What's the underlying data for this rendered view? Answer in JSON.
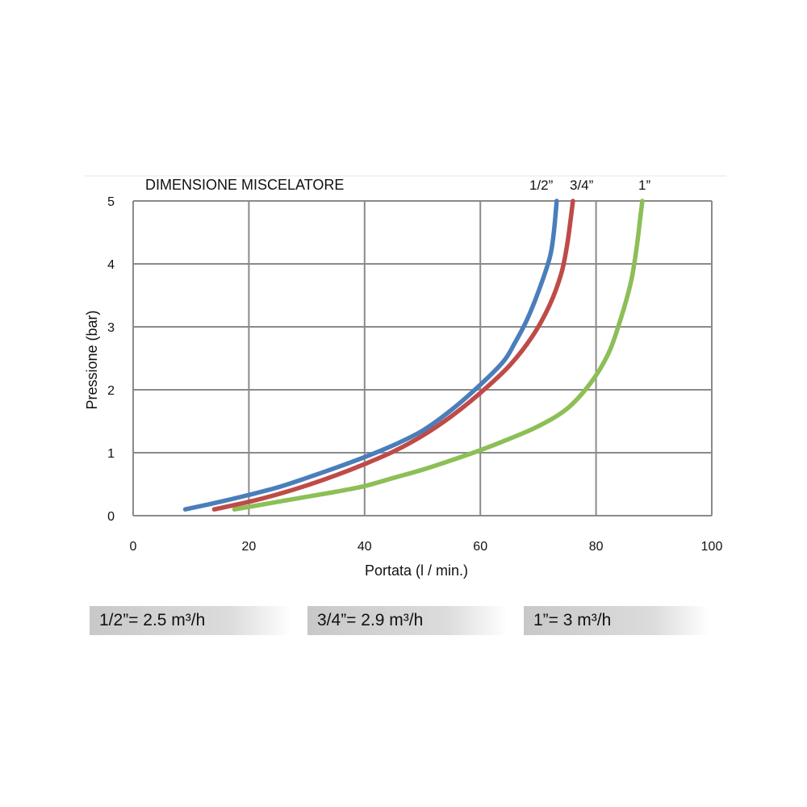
{
  "chart_data": {
    "type": "line",
    "title": "DIMENSIONE MISCELATORE",
    "xlabel": "Portata (l / min.)",
    "ylabel": "Pressione (bar)",
    "xlim": [
      0,
      100
    ],
    "ylim": [
      0,
      5
    ],
    "x_ticks": [
      "0",
      "20",
      "40",
      "60",
      "80",
      "100"
    ],
    "y_ticks": [
      "0",
      "1",
      "2",
      "3",
      "4",
      "5"
    ],
    "grid": true,
    "series": [
      {
        "name": "1/2”",
        "color": "#4a7ebb",
        "points": [
          [
            9,
            0.1
          ],
          [
            15,
            0.22
          ],
          [
            20,
            0.33
          ],
          [
            25,
            0.45
          ],
          [
            30,
            0.6
          ],
          [
            35,
            0.76
          ],
          [
            40,
            0.93
          ],
          [
            45,
            1.12
          ],
          [
            50,
            1.35
          ],
          [
            55,
            1.68
          ],
          [
            60,
            2.08
          ],
          [
            64,
            2.45
          ],
          [
            66,
            2.75
          ],
          [
            68,
            3.1
          ],
          [
            70,
            3.55
          ],
          [
            72,
            4.1
          ],
          [
            72.7,
            4.5
          ],
          [
            73.2,
            5.0
          ]
        ]
      },
      {
        "name": "3/4”",
        "color": "#be4b48",
        "points": [
          [
            14,
            0.1
          ],
          [
            20,
            0.22
          ],
          [
            25,
            0.34
          ],
          [
            30,
            0.48
          ],
          [
            35,
            0.64
          ],
          [
            40,
            0.82
          ],
          [
            45,
            1.02
          ],
          [
            50,
            1.27
          ],
          [
            55,
            1.58
          ],
          [
            60,
            1.95
          ],
          [
            65,
            2.38
          ],
          [
            69,
            2.85
          ],
          [
            72,
            3.35
          ],
          [
            74,
            3.85
          ],
          [
            75,
            4.3
          ],
          [
            75.6,
            4.7
          ],
          [
            76,
            5.0
          ]
        ]
      },
      {
        "name": "1”",
        "color": "#8cbf57",
        "points": [
          [
            17.5,
            0.1
          ],
          [
            25,
            0.22
          ],
          [
            30,
            0.3
          ],
          [
            35,
            0.38
          ],
          [
            40,
            0.47
          ],
          [
            45,
            0.6
          ],
          [
            50,
            0.73
          ],
          [
            55,
            0.88
          ],
          [
            60,
            1.04
          ],
          [
            65,
            1.22
          ],
          [
            70,
            1.42
          ],
          [
            75,
            1.7
          ],
          [
            79,
            2.1
          ],
          [
            82,
            2.55
          ],
          [
            84,
            3.05
          ],
          [
            86,
            3.7
          ],
          [
            87,
            4.25
          ],
          [
            87.6,
            4.7
          ],
          [
            88,
            5.0
          ]
        ]
      }
    ]
  },
  "badges": [
    {
      "text": "1/2”= 2.5 m³/h"
    },
    {
      "text": "3/4”= 2.9 m³/h"
    },
    {
      "text": "1”= 3 m³/h"
    }
  ]
}
